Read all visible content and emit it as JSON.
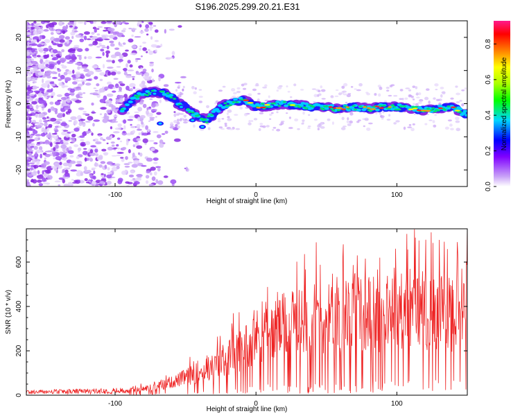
{
  "title": "S196.2025.299.20.21.E31",
  "chart_data": [
    {
      "type": "heatmap",
      "panel": "spectrogram",
      "xlabel": "Height of straight line (km)",
      "ylabel": "Frequency (Hz)",
      "xlim": [
        -163,
        150
      ],
      "ylim": [
        -25,
        25
      ],
      "xticks": [
        -100,
        0,
        100
      ],
      "xtick_labels": [
        "-100",
        "0",
        "100"
      ],
      "yticks": [
        -20,
        -10,
        0,
        10,
        20
      ],
      "ytick_labels": [
        "-20",
        "-10",
        "0",
        "10",
        "20"
      ],
      "ridge_x": [
        -95,
        -90,
        -85,
        -80,
        -75,
        -70,
        -65,
        -60,
        -55,
        -50,
        -45,
        -40,
        -35,
        -30,
        -25,
        -20,
        -15,
        -10,
        -5,
        0,
        10,
        20,
        30,
        40,
        50,
        60,
        70,
        80,
        90,
        100,
        110,
        120,
        130,
        140,
        148
      ],
      "ridge_y": [
        -2,
        0,
        2,
        3,
        3.5,
        3.5,
        3,
        2,
        0,
        -1,
        -3,
        -4,
        -5,
        -3,
        -1,
        0,
        0.5,
        1,
        0.5,
        -1,
        -0.5,
        0,
        -0.5,
        -1,
        -1,
        -1.5,
        -1,
        -1.5,
        -1,
        -1,
        -1.5,
        -2,
        -1.5,
        -1,
        -3
      ],
      "colorbar": {
        "label": "Normalized spectral amplitude",
        "ticks": [
          0.0,
          0.2,
          0.4,
          0.6,
          0.8
        ],
        "tick_labels": [
          "0.0",
          "0.2",
          "0.4",
          "0.6",
          "0.8"
        ],
        "range": [
          0,
          0.93
        ],
        "colormap": [
          "#ffffff",
          "#c9a3f7",
          "#7f00ff",
          "#0000ff",
          "#00d8ff",
          "#00ff00",
          "#ffff00",
          "#ff7f00",
          "#ff0000",
          "#ff1a8c"
        ]
      }
    },
    {
      "type": "line",
      "panel": "snr",
      "xlabel": "Height of straight line (km)",
      "ylabel": "SNR (10 * v/v)",
      "xlim": [
        -163,
        150
      ],
      "ylim": [
        0,
        750
      ],
      "xticks": [
        -100,
        0,
        100
      ],
      "xtick_labels": [
        "-100",
        "0",
        "100"
      ],
      "yticks": [
        0,
        200,
        400,
        600
      ],
      "ytick_labels": [
        "0",
        "200",
        "400",
        "600"
      ],
      "color": "#ee2222",
      "envelope_x": [
        -163,
        -120,
        -90,
        -80,
        -70,
        -60,
        -50,
        -40,
        -30,
        -20,
        -10,
        0,
        10,
        20,
        30,
        40,
        50,
        60,
        70,
        80,
        90,
        100,
        110,
        120,
        130,
        140,
        150
      ],
      "envelope_y": [
        15,
        18,
        22,
        30,
        45,
        60,
        85,
        110,
        135,
        180,
        220,
        280,
        300,
        330,
        340,
        370,
        360,
        380,
        380,
        390,
        380,
        400,
        410,
        390,
        420,
        380,
        450
      ],
      "peaks_x": [
        62,
        72,
        88,
        99,
        113,
        130,
        143,
        150
      ],
      "peaks_y": [
        680,
        630,
        620,
        660,
        710,
        700,
        690,
        740
      ]
    }
  ]
}
